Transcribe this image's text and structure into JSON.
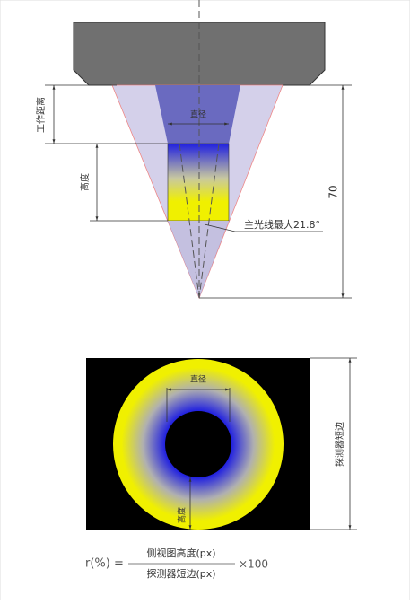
{
  "top": {
    "working_distance": "工作距离",
    "height": "高度",
    "diameter": "直径",
    "length": "70",
    "chief_ray": "主光线最大21.8°"
  },
  "bottom": {
    "diameter": "直径",
    "height": "高度",
    "detector_short_side": "探测器短边"
  },
  "formula": {
    "lhs": "r(%) =",
    "numerator": "侧视图高度(px)",
    "denominator": "探测器短边(px)",
    "factor": "×100"
  }
}
